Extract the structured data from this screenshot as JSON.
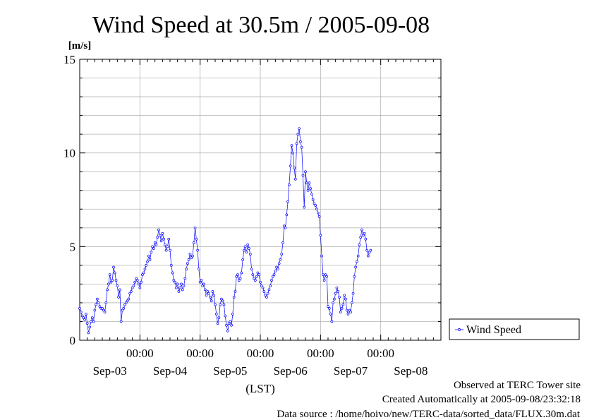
{
  "chart_data": {
    "type": "line",
    "title": "Wind Speed at 30.5m / 2005-09-08",
    "y_unit": "[m/s]",
    "xlabel": "(LST)",
    "ylim": [
      0,
      15
    ],
    "y_ticks": [
      "0",
      "5",
      "10",
      "15"
    ],
    "x_range_hours": [
      0,
      144
    ],
    "x_time_ticks": [
      {
        "hour": 24,
        "label": "00:00"
      },
      {
        "hour": 48,
        "label": "00:00"
      },
      {
        "hour": 72,
        "label": "00:00"
      },
      {
        "hour": 96,
        "label": "00:00"
      },
      {
        "hour": 120,
        "label": "00:00"
      }
    ],
    "x_date_labels": [
      {
        "hour": 12,
        "label": "Sep-03"
      },
      {
        "hour": 36,
        "label": "Sep-04"
      },
      {
        "hour": 60,
        "label": "Sep-05"
      },
      {
        "hour": 84,
        "label": "Sep-06"
      },
      {
        "hour": 108,
        "label": "Sep-07"
      },
      {
        "hour": 132,
        "label": "Sep-08"
      }
    ],
    "grid": true,
    "legend_position": "right-bottom",
    "series": [
      {
        "name": "Wind Speed",
        "color": "#0000ff",
        "sample_interval_minutes": 30,
        "x_start_hour": 0,
        "values": [
          1.7,
          1.5,
          1.3,
          1.2,
          1.1,
          1.4,
          0.9,
          0.4,
          0.7,
          1.0,
          1.2,
          1.0,
          1.6,
          1.9,
          2.2,
          2.0,
          1.8,
          1.7,
          1.7,
          1.6,
          1.5,
          2.0,
          2.7,
          3.0,
          3.5,
          3.1,
          3.2,
          3.9,
          3.6,
          3.2,
          2.9,
          2.3,
          2.7,
          1.0,
          1.6,
          1.7,
          1.9,
          2.0,
          2.1,
          2.2,
          2.5,
          2.6,
          2.8,
          2.9,
          3.1,
          3.3,
          3.2,
          3.0,
          2.8,
          3.1,
          3.5,
          3.6,
          3.8,
          4.0,
          4.2,
          4.5,
          4.3,
          4.7,
          5.0,
          4.9,
          5.2,
          5.1,
          5.5,
          5.9,
          5.6,
          5.3,
          5.7,
          5.4,
          5.1,
          4.8,
          5.0,
          5.4,
          4.8,
          4.0,
          3.6,
          3.2,
          3.1,
          2.8,
          3.0,
          2.6,
          2.8,
          3.0,
          2.7,
          2.9,
          3.3,
          3.8,
          4.1,
          4.3,
          4.6,
          4.4,
          4.5,
          5.2,
          6.0,
          5.4,
          4.8,
          3.8,
          3.1,
          3.2,
          2.9,
          3.0,
          2.7,
          2.4,
          2.6,
          2.5,
          2.3,
          2.1,
          2.6,
          2.4,
          1.9,
          1.4,
          0.9,
          1.2,
          1.9,
          2.2,
          2.1,
          1.9,
          1.3,
          0.8,
          0.5,
          0.9,
          1.0,
          0.8,
          1.4,
          2.3,
          2.6,
          3.4,
          3.5,
          3.2,
          3.3,
          3.6,
          4.3,
          4.8,
          5.0,
          4.7,
          5.1,
          4.9,
          4.6,
          3.8,
          3.5,
          3.3,
          3.2,
          3.4,
          3.6,
          3.5,
          3.1,
          2.9,
          2.8,
          2.6,
          2.4,
          2.3,
          2.5,
          2.7,
          2.9,
          3.2,
          3.4,
          3.5,
          3.7,
          3.9,
          3.8,
          4.1,
          4.3,
          4.6,
          5.2,
          6.1,
          6.0,
          6.7,
          7.4,
          8.3,
          9.3,
          10.4,
          10.0,
          9.2,
          8.6,
          10.5,
          11.0,
          11.3,
          10.6,
          10.3,
          8.8,
          7.1,
          9.0,
          8.4,
          8.0,
          8.4,
          8.1,
          7.8,
          7.5,
          7.3,
          7.2,
          7.0,
          6.8,
          6.6,
          5.6,
          4.5,
          3.5,
          3.2,
          3.5,
          3.4,
          1.8,
          1.7,
          1.4,
          1.0,
          2.0,
          2.2,
          2.5,
          2.8,
          2.6,
          2.3,
          1.5,
          1.7,
          1.9,
          2.4,
          2.2,
          1.6,
          1.4,
          1.6,
          1.5,
          2.0,
          2.5,
          3.4,
          3.9,
          4.2,
          4.5,
          5.1,
          5.5,
          5.9,
          5.6,
          5.7,
          5.4,
          4.8,
          4.5,
          4.7,
          4.8
        ]
      }
    ]
  },
  "footer": {
    "line1": "Observed at TERC Tower site",
    "line2": "Created Automatically at 2005-09-08/23:32:18",
    "line3": "Data source : /home/hoivo/new/TERC-data/sorted_data/FLUX.30m.dat"
  }
}
